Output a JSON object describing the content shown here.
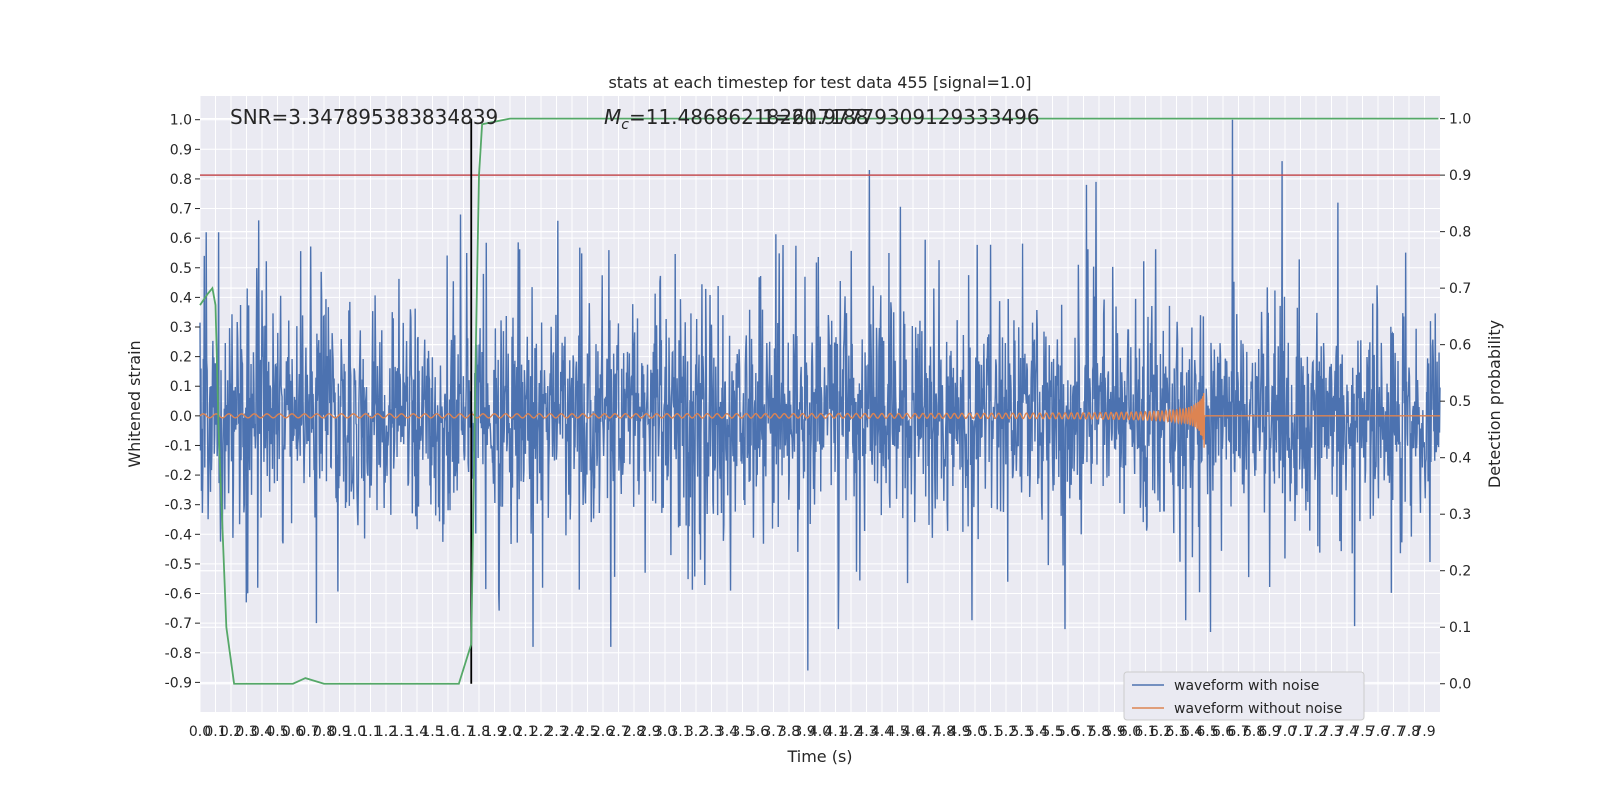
{
  "chart_data": {
    "type": "line",
    "title": "stats at each timestep for test data 455 [signal=1.0]",
    "xlabel": "Time (s)",
    "ylabel_left": "Whitened strain",
    "ylabel_right": "Detection probability",
    "xlim": [
      0.0,
      8.0
    ],
    "ylim_left": [
      -1.0,
      1.08
    ],
    "ylim_right": [
      -0.05,
      1.04
    ],
    "x_ticks": [
      "0.0",
      "0.1",
      "0.2",
      "0.3",
      "0.4",
      "0.5",
      "0.6",
      "0.7",
      "0.8",
      "0.9",
      "1.0",
      "1.1",
      "1.2",
      "1.3",
      "1.4",
      "1.5",
      "1.6",
      "1.7",
      "1.8",
      "1.9",
      "2.0",
      "2.1",
      "2.2",
      "2.3",
      "2.4",
      "2.5",
      "2.6",
      "2.7",
      "2.8",
      "2.9",
      "3.0",
      "3.1",
      "3.2",
      "3.3",
      "3.4",
      "3.5",
      "3.6",
      "3.7",
      "3.8",
      "3.9",
      "4.0",
      "4.1",
      "4.2",
      "4.3",
      "4.4",
      "4.5",
      "4.6",
      "4.7",
      "4.8",
      "4.9",
      "5.0",
      "5.1",
      "5.2",
      "5.3",
      "5.4",
      "5.5",
      "5.6",
      "5.7",
      "5.8",
      "5.9",
      "6.0",
      "6.1",
      "6.2",
      "6.3",
      "6.4",
      "6.5",
      "6.6",
      "6.7",
      "6.8",
      "6.9",
      "7.0",
      "7.1",
      "7.2",
      "7.3",
      "7.4",
      "7.5",
      "7.6",
      "7.7",
      "7.8",
      "7.9"
    ],
    "y_ticks_left": [
      "-0.9",
      "-0.8",
      "-0.7",
      "-0.6",
      "-0.5",
      "-0.4",
      "-0.3",
      "-0.2",
      "-0.1",
      "0.0",
      "0.1",
      "0.2",
      "0.3",
      "0.4",
      "0.5",
      "0.6",
      "0.7",
      "0.8",
      "0.9",
      "1.0"
    ],
    "y_ticks_right": [
      "0.0",
      "0.1",
      "0.2",
      "0.3",
      "0.4",
      "0.5",
      "0.6",
      "0.7",
      "0.8",
      "0.9",
      "1.0"
    ],
    "annotations": {
      "snr": "SNR=3.347895383834839",
      "mc": "$M_c$=11.486862182617188",
      "mc_overlap": "1=20.97779309129333496"
    },
    "grid": true,
    "legend_placement": "lower-right",
    "series": [
      {
        "name": "waveform with noise",
        "color": "#4c72b0",
        "axis": "left",
        "noise_band": [
          -0.3,
          0.35
        ],
        "spikes": [
          {
            "x": 0.04,
            "y": 0.62
          },
          {
            "x": 0.12,
            "y": 0.62
          },
          {
            "x": 0.38,
            "y": 0.66
          },
          {
            "x": 1.68,
            "y": 0.68
          },
          {
            "x": 1.72,
            "y": 0.55
          },
          {
            "x": 4.32,
            "y": 0.83
          },
          {
            "x": 5.78,
            "y": 0.79
          },
          {
            "x": 5.72,
            "y": 0.78
          },
          {
            "x": 6.66,
            "y": 1.0
          },
          {
            "x": 6.98,
            "y": 0.86
          },
          {
            "x": 7.34,
            "y": 0.72
          },
          {
            "x": 0.75,
            "y": -0.7
          },
          {
            "x": 2.15,
            "y": -0.78
          },
          {
            "x": 2.65,
            "y": -0.78
          },
          {
            "x": 3.92,
            "y": -0.86
          },
          {
            "x": 4.12,
            "y": -0.72
          },
          {
            "x": 5.58,
            "y": -0.72
          },
          {
            "x": 6.52,
            "y": -0.73
          },
          {
            "x": 6.36,
            "y": -0.69
          },
          {
            "x": 7.45,
            "y": -0.71
          },
          {
            "x": 0.3,
            "y": -0.63
          },
          {
            "x": 4.98,
            "y": -0.69
          }
        ]
      },
      {
        "name": "waveform without noise",
        "color": "#dd8452",
        "axis": "left",
        "chirp_start": 0.0,
        "merger_time": 6.48,
        "peak_amplitude": 0.12
      },
      {
        "name": "",
        "color": "#55a868",
        "axis": "right",
        "x": [
          0.0,
          0.05,
          0.08,
          0.1,
          0.12,
          0.17,
          0.22,
          0.3,
          0.6,
          0.68,
          0.8,
          1.0,
          1.2,
          1.5,
          1.6,
          1.67,
          1.75,
          1.78,
          1.8,
          1.82,
          2.0,
          3.0,
          4.0,
          5.0,
          6.0,
          7.0,
          7.99
        ],
        "y": [
          0.67,
          0.69,
          0.7,
          0.67,
          0.45,
          0.1,
          0.0,
          0.0,
          0.0,
          0.01,
          0.0,
          0.0,
          0.0,
          0.0,
          0.0,
          0.0,
          0.07,
          0.6,
          0.9,
          0.99,
          1.0,
          1.0,
          1.0,
          1.0,
          1.0,
          1.0,
          1.0
        ]
      }
    ],
    "threshold": {
      "axis": "right",
      "y": 0.9,
      "color": "#c44e52"
    },
    "detection_line": {
      "x": 1.75,
      "color": "#000000",
      "ymin": 0.0,
      "ymax": 1.0
    }
  }
}
